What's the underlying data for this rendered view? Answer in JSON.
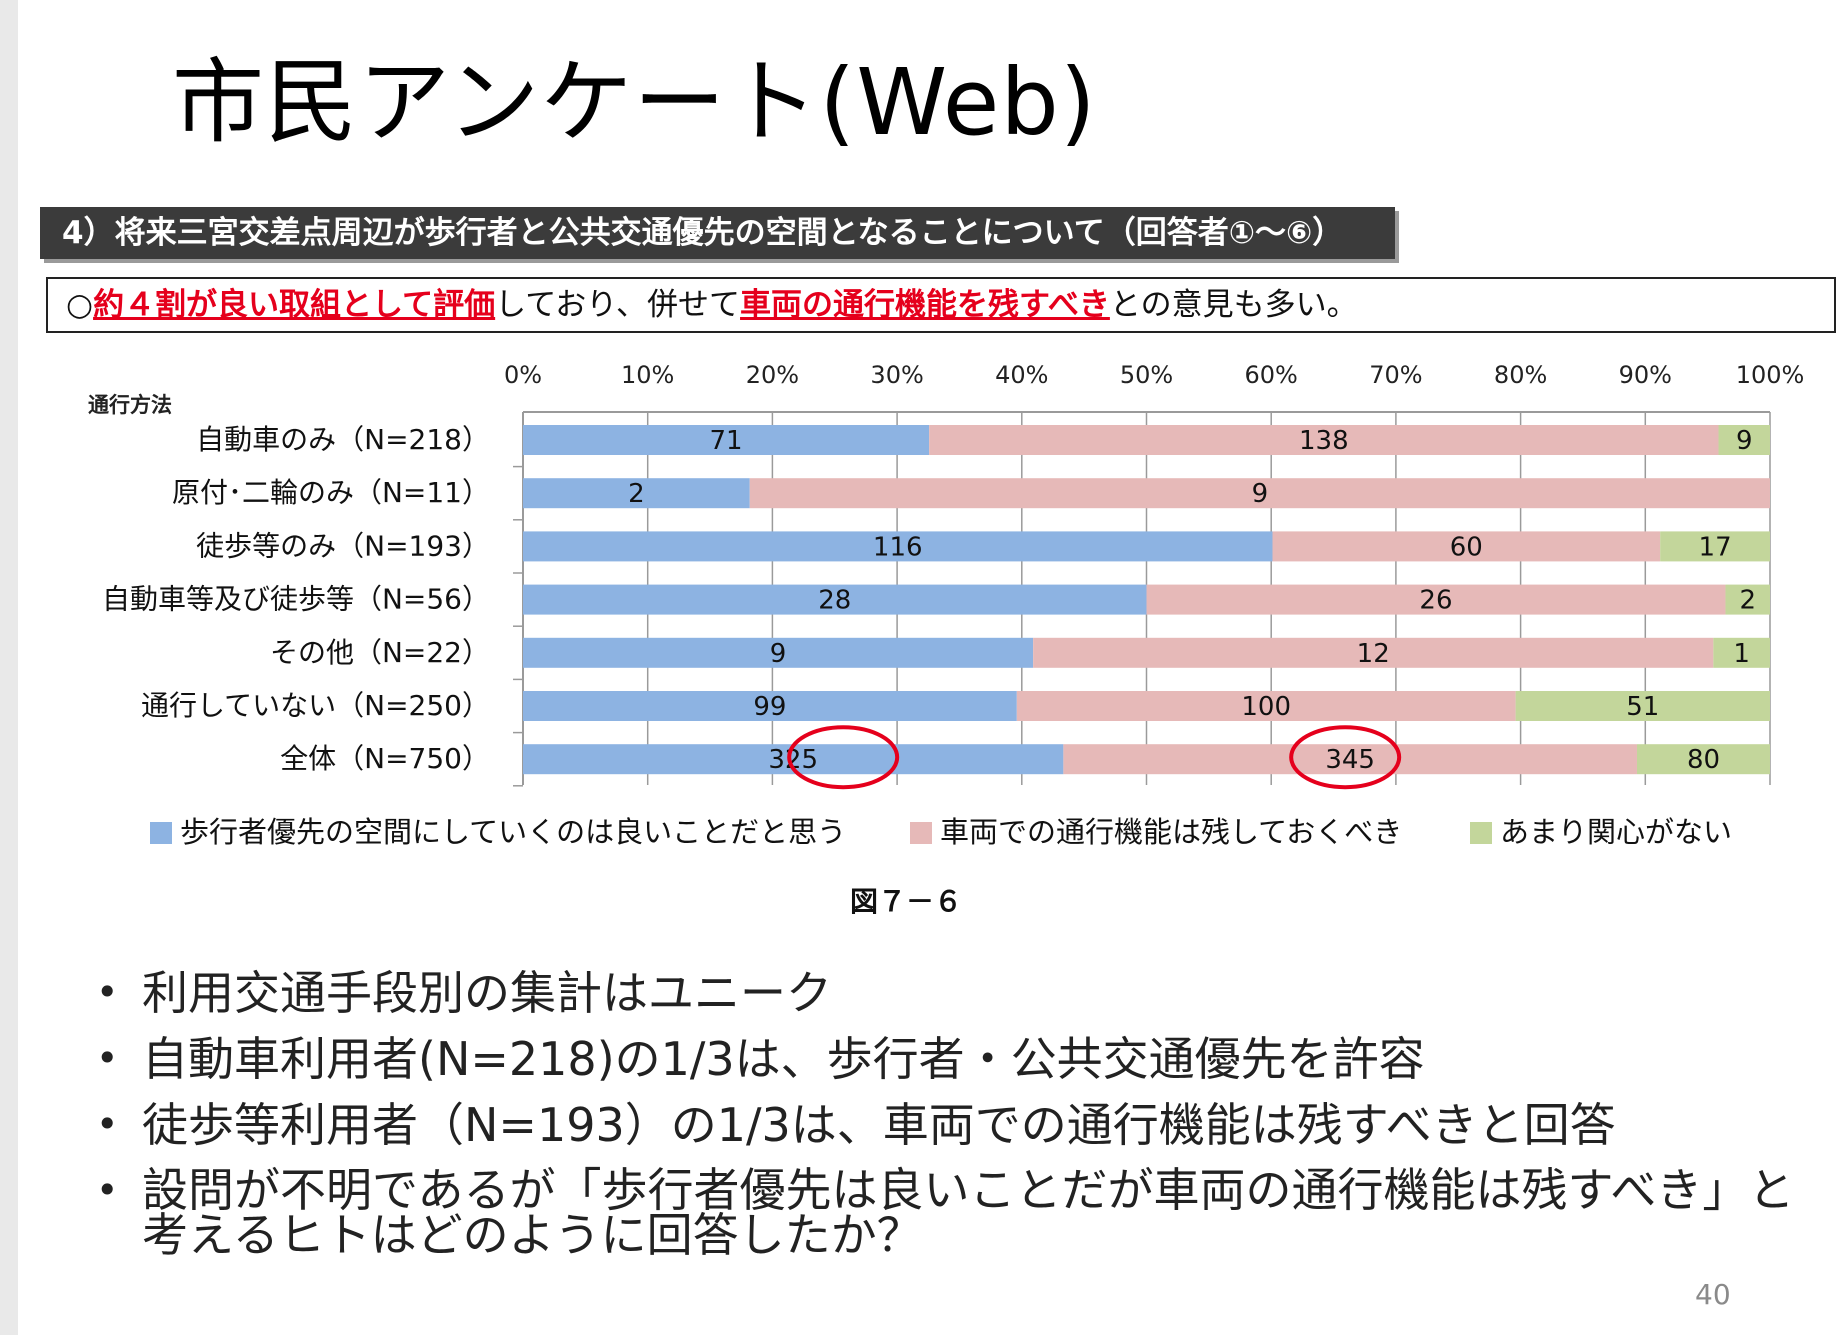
{
  "slide": {
    "title": "市民アンケート(Web)",
    "section_heading": "4）将来三宮交差点周辺が歩行者と公共交通優先の空間となることについて（回答者①～⑥）",
    "summary": {
      "prefix": "○",
      "hl1": "約４割が良い取組として評価",
      "mid": "しており、併せて",
      "hl2": "車両の通行機能を残すべき",
      "suffix": "との意見も多い。"
    },
    "figure_label": "図７－６",
    "bullets": [
      "利用交通手段別の集計はユニーク",
      "自動車利用者(N=218)の1/3は、歩行者・公共交通優先を許容",
      "徒歩等利用者（N=193）の1/3は、車両での通行機能は残すべきと回答",
      "設問が不明であるが「歩行者優先は良いことだが車両の通行機能は残すべき」と考えるヒトはどのように回答したか？"
    ],
    "page_number": "40"
  },
  "chart_data": {
    "type": "bar",
    "orientation": "horizontal",
    "stacked": "percent",
    "category_axis_title": "通行方法",
    "categories": [
      "自動車のみ（N=218）",
      "原付･二輪のみ（N=11）",
      "徒歩等のみ（N=193）",
      "自動車等及び徒歩等（N=56）",
      "その他（N=22）",
      "通行していない（N=250）",
      "全体（N=750）"
    ],
    "series": [
      {
        "name": "歩行者優先の空間にしていくのは良いことだと思う",
        "color": "#8db3e2",
        "values": [
          71,
          2,
          116,
          28,
          9,
          99,
          325
        ]
      },
      {
        "name": "車両での通行機能は残しておくべき",
        "color": "#e6b9b8",
        "values": [
          138,
          9,
          60,
          26,
          12,
          100,
          345
        ]
      },
      {
        "name": "あまり関心がない",
        "color": "#c3d69b",
        "values": [
          9,
          0,
          17,
          2,
          1,
          51,
          80
        ]
      }
    ],
    "x_tick_labels": [
      "0%",
      "10%",
      "20%",
      "30%",
      "40%",
      "50%",
      "60%",
      "70%",
      "80%",
      "90%",
      "100%"
    ],
    "xlim": [
      0,
      100
    ],
    "grid": true,
    "legend_position": "bottom",
    "highlighted_values": [
      325,
      345
    ]
  }
}
